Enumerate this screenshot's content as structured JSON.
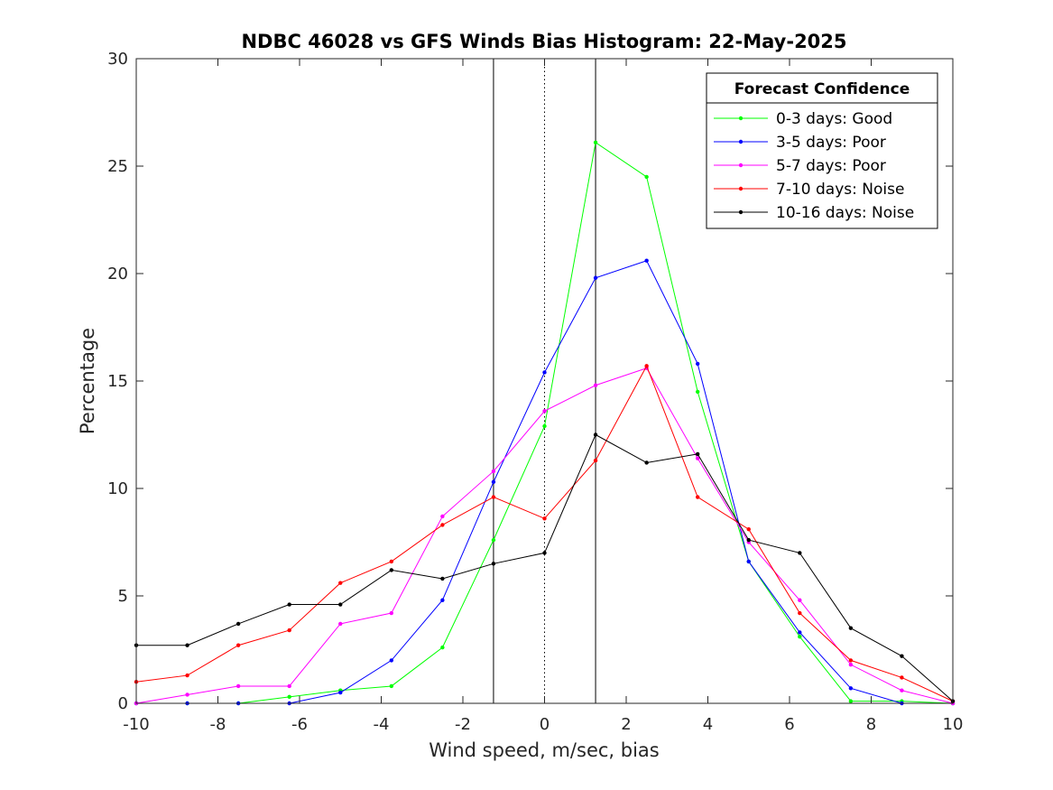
{
  "chart_data": {
    "type": "line",
    "title": "NDBC 46028 vs GFS Winds Bias Histogram: 22-May-2025",
    "xlabel": "Wind speed, m/sec, bias",
    "ylabel": "Percentage",
    "xlim": [
      -10,
      10
    ],
    "ylim": [
      0,
      30
    ],
    "xticks": [
      -10,
      -8,
      -6,
      -4,
      -2,
      0,
      2,
      4,
      6,
      8,
      10
    ],
    "yticks": [
      0,
      5,
      10,
      15,
      20,
      25,
      30
    ],
    "grid": false,
    "legend": {
      "title": "Forecast Confidence",
      "placement": "top-right"
    },
    "vertical_lines": [
      {
        "x": -1.25,
        "style": "solid"
      },
      {
        "x": 0,
        "style": "dotted"
      },
      {
        "x": 1.25,
        "style": "solid"
      }
    ],
    "x": [
      -10,
      -8.75,
      -7.5,
      -6.25,
      -5,
      -3.75,
      -2.5,
      -1.25,
      0,
      1.25,
      2.5,
      3.75,
      5,
      6.25,
      7.5,
      8.75,
      10
    ],
    "series": [
      {
        "name": "0-3 days: Good",
        "color": "#00ff00",
        "values": [
          0,
          0,
          0,
          0.3,
          0.6,
          0.8,
          2.6,
          7.6,
          12.9,
          26.1,
          24.5,
          14.5,
          6.6,
          3.1,
          0.1,
          0.1,
          0
        ]
      },
      {
        "name": "3-5 days: Poor",
        "color": "#0000ff",
        "values": [
          0,
          0,
          0,
          0,
          0.5,
          2.0,
          4.8,
          10.3,
          15.4,
          19.8,
          20.6,
          15.8,
          6.6,
          3.3,
          0.7,
          0,
          0
        ]
      },
      {
        "name": "5-7 days: Poor",
        "color": "#ff00ff",
        "values": [
          0,
          0.4,
          0.8,
          0.8,
          3.7,
          4.2,
          8.7,
          10.8,
          13.6,
          14.8,
          15.6,
          11.4,
          7.5,
          4.8,
          1.8,
          0.6,
          0
        ]
      },
      {
        "name": "7-10 days: Noise",
        "color": "#ff0000",
        "values": [
          1.0,
          1.3,
          2.7,
          3.4,
          5.6,
          6.6,
          8.3,
          9.6,
          8.6,
          11.3,
          15.7,
          9.6,
          8.1,
          4.2,
          2.0,
          1.2,
          0.1
        ]
      },
      {
        "name": "10-16 days: Noise",
        "color": "#000000",
        "values": [
          2.7,
          2.7,
          3.7,
          4.6,
          4.6,
          6.2,
          5.8,
          6.5,
          7.0,
          12.5,
          11.2,
          11.6,
          7.6,
          7.0,
          3.5,
          2.2,
          0.1
        ]
      }
    ]
  }
}
